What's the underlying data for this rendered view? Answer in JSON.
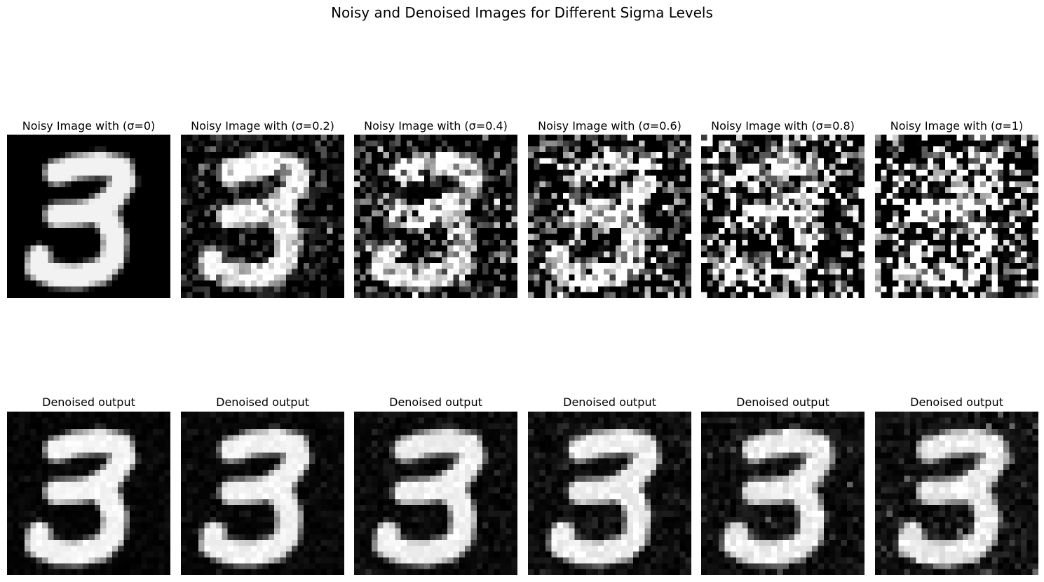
{
  "figure": {
    "title": "Noisy and Denoised Images for Different Sigma Levels"
  },
  "noisy_panels": [
    {
      "title": "Noisy  Image with (σ=0)",
      "sigma": 0
    },
    {
      "title": "Noisy  Image with (σ=0.2)",
      "sigma": 0.2
    },
    {
      "title": "Noisy  Image with (σ=0.4)",
      "sigma": 0.4
    },
    {
      "title": "Noisy  Image with (σ=0.6)",
      "sigma": 0.6
    },
    {
      "title": "Noisy  Image with (σ=0.8)",
      "sigma": 0.8
    },
    {
      "title": "Noisy  Image with (σ=1)",
      "sigma": 1
    }
  ],
  "denoised_panels": [
    {
      "title": "Denoised output",
      "sigma": 0
    },
    {
      "title": "Denoised output",
      "sigma": 0.2
    },
    {
      "title": "Denoised output",
      "sigma": 0.4
    },
    {
      "title": "Denoised output",
      "sigma": 0.6
    },
    {
      "title": "Denoised output",
      "sigma": 0.8
    },
    {
      "title": "Denoised output",
      "sigma": 1
    }
  ],
  "colors": {
    "background": "#ffffff",
    "image_background": "#000000",
    "digit_foreground": "#f2f2f2"
  }
}
